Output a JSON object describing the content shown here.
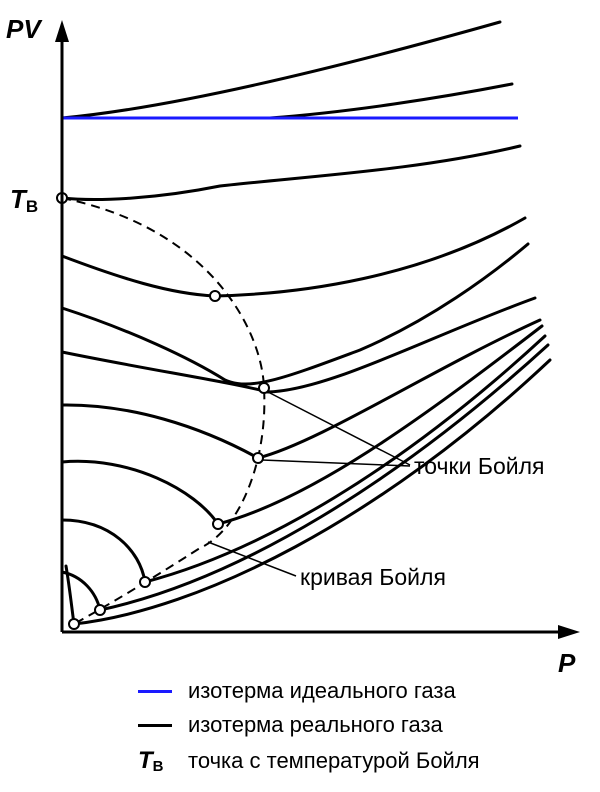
{
  "colors": {
    "ideal": "#1a1aff",
    "real": "#000000",
    "boyle_curve": "#000000"
  },
  "axes": {
    "y_label": "PV",
    "x_label": "P",
    "tb_label": "T",
    "tb_subscript": "B"
  },
  "annotations": {
    "boyle_points": "точки Бойля",
    "boyle_curve": "кривая Бойля"
  },
  "legend": {
    "ideal": "изотерма идеального газа",
    "real": "изотерма реального газа",
    "tb_symbol": "T",
    "tb_subscript": "B",
    "tb_text": "точка с температурой Бойля"
  },
  "isotherms": {
    "ideal_count": 1,
    "real_count": 11
  }
}
